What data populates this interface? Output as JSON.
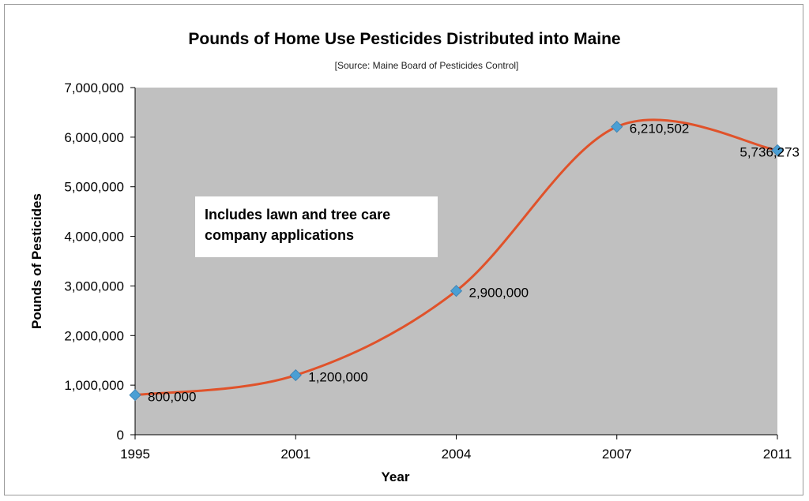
{
  "chart_data": {
    "type": "line",
    "title": "Pounds of Home Use Pesticides Distributed into Maine",
    "subtitle": "[Source: Maine Board of Pesticides Control]",
    "xlabel": "Year",
    "ylabel": "Pounds of Pesticides",
    "categories": [
      "1995",
      "2001",
      "2004",
      "2007",
      "2011"
    ],
    "values": [
      800000,
      1200000,
      2900000,
      6210502,
      5736273
    ],
    "data_labels": [
      "800,000",
      "1,200,000",
      "2,900,000",
      "6,210,502",
      "5,736,273"
    ],
    "ylim": [
      0,
      7000000
    ],
    "y_ticks": [
      0,
      1000000,
      2000000,
      3000000,
      4000000,
      5000000,
      6000000,
      7000000
    ],
    "y_tick_labels": [
      "0",
      "1,000,000",
      "2,000,000",
      "3,000,000",
      "4,000,000",
      "5,000,000",
      "6,000,000",
      "7,000,000"
    ],
    "annotation": "Includes lawn and tree care company applications",
    "grid": false,
    "line_style": "smoothed",
    "colors": {
      "line": "#e0522a",
      "marker": "#4a9fd4",
      "plot_background": "#c0c0c0"
    }
  }
}
